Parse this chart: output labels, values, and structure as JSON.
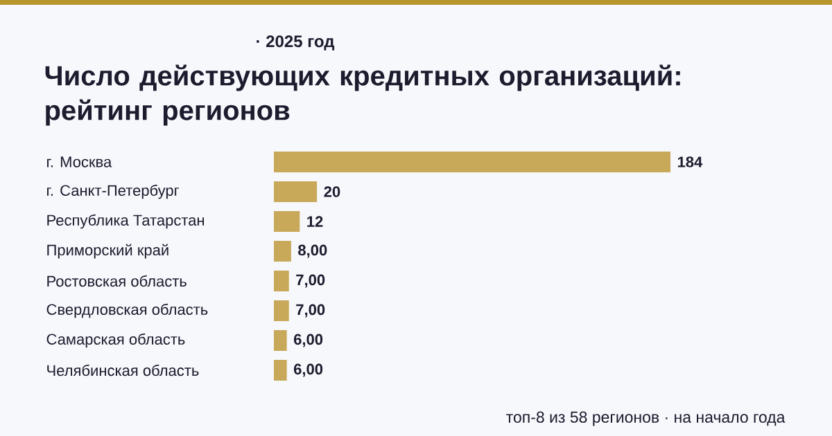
{
  "chart_data": {
    "type": "bar",
    "orientation": "horizontal",
    "title": "Число действующих кредитных организаций: рейтинг регионов",
    "subtitle": "· 2025 год",
    "categories": [
      "г. Москва",
      "г. Санкт-Петербург",
      "Республика Татарстан",
      "Приморский край",
      "Ростовская область",
      "Свердловская область",
      "Самарская область",
      "Челябинская область"
    ],
    "values": [
      184,
      20,
      12,
      8,
      7,
      7,
      6,
      6
    ],
    "value_labels": [
      "184",
      "20",
      "12",
      "8,00",
      "7,00",
      "7,00",
      "6,00",
      "6,00"
    ],
    "color": "#c8a95a",
    "annotations": [
      "топ-8 из 58 регионов · на начало года"
    ]
  }
}
